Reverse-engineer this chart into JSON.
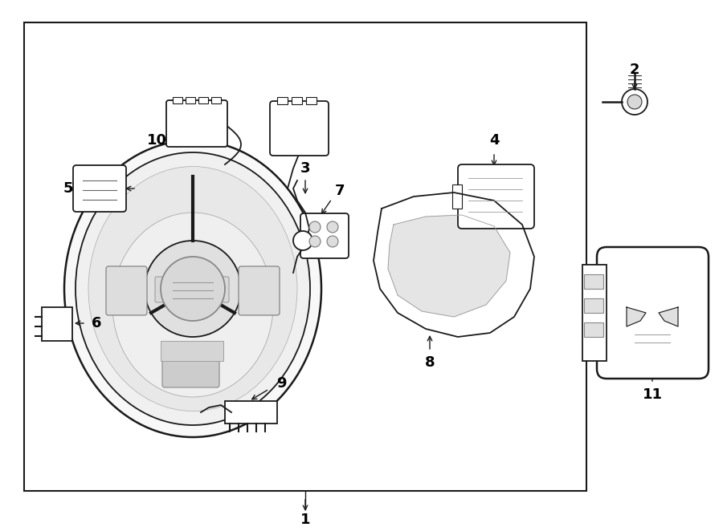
{
  "bg_color": "#ffffff",
  "line_color": "#1a1a1a",
  "fig_width": 9.0,
  "fig_height": 6.62,
  "dpi": 100,
  "xlim": [
    0,
    900
  ],
  "ylim": [
    0,
    662
  ]
}
